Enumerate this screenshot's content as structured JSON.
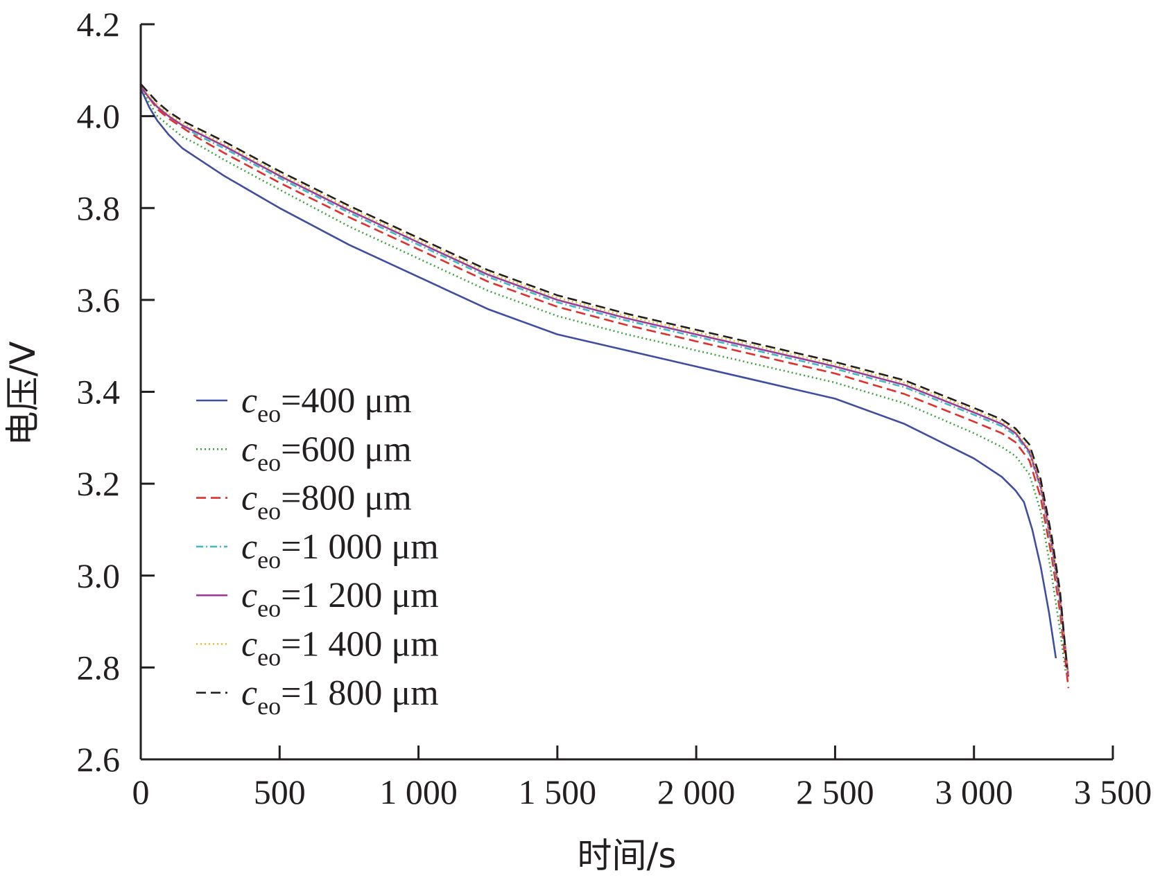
{
  "chart_data": {
    "type": "line",
    "xlabel": "时间/s",
    "ylabel": "电压/V",
    "xlim": [
      0,
      3500
    ],
    "ylim": [
      2.6,
      4.2
    ],
    "x_ticks": [
      {
        "value": 0,
        "label": "0"
      },
      {
        "value": 500,
        "label": "500"
      },
      {
        "value": 1000,
        "label": "1 000"
      },
      {
        "value": 1500,
        "label": "1 500"
      },
      {
        "value": 2000,
        "label": "2 000"
      },
      {
        "value": 2500,
        "label": "2 500"
      },
      {
        "value": 3000,
        "label": "3 000"
      },
      {
        "value": 3500,
        "label": "3 500"
      }
    ],
    "y_ticks": [
      {
        "value": 2.6,
        "label": "2.6"
      },
      {
        "value": 2.8,
        "label": "2.8"
      },
      {
        "value": 3.0,
        "label": "3.0"
      },
      {
        "value": 3.2,
        "label": "3.2"
      },
      {
        "value": 3.4,
        "label": "3.4"
      },
      {
        "value": 3.6,
        "label": "3.6"
      },
      {
        "value": 3.8,
        "label": "3.8"
      },
      {
        "value": 4.0,
        "label": "4.0"
      },
      {
        "value": 4.2,
        "label": "4.2"
      }
    ],
    "grid": false,
    "legend_position": "left-bottom",
    "series": [
      {
        "legend_symbol": "c",
        "legend_subscript": "eo",
        "legend_value": "=400 μm",
        "color": "#3f4ea0",
        "dash": "",
        "points": [
          [
            0,
            4.06
          ],
          [
            30,
            4.02
          ],
          [
            60,
            3.99
          ],
          [
            100,
            3.96
          ],
          [
            150,
            3.93
          ],
          [
            200,
            3.91
          ],
          [
            300,
            3.87
          ],
          [
            500,
            3.8
          ],
          [
            750,
            3.72
          ],
          [
            1000,
            3.65
          ],
          [
            1250,
            3.58
          ],
          [
            1500,
            3.525
          ],
          [
            1750,
            3.49
          ],
          [
            2000,
            3.455
          ],
          [
            2250,
            3.42
          ],
          [
            2500,
            3.385
          ],
          [
            2750,
            3.33
          ],
          [
            3000,
            3.255
          ],
          [
            3100,
            3.215
          ],
          [
            3150,
            3.185
          ],
          [
            3180,
            3.16
          ],
          [
            3210,
            3.1
          ],
          [
            3240,
            3.02
          ],
          [
            3270,
            2.92
          ],
          [
            3295,
            2.82
          ]
        ]
      },
      {
        "legend_symbol": "c",
        "legend_subscript": "eo",
        "legend_value": "=600 μm",
        "color": "#3aa53a",
        "dash": "2 4",
        "points": [
          [
            0,
            4.065
          ],
          [
            30,
            4.03
          ],
          [
            60,
            4.0
          ],
          [
            100,
            3.98
          ],
          [
            150,
            3.955
          ],
          [
            200,
            3.94
          ],
          [
            300,
            3.905
          ],
          [
            500,
            3.84
          ],
          [
            750,
            3.76
          ],
          [
            1000,
            3.69
          ],
          [
            1250,
            3.62
          ],
          [
            1500,
            3.565
          ],
          [
            1750,
            3.525
          ],
          [
            2000,
            3.49
          ],
          [
            2250,
            3.455
          ],
          [
            2500,
            3.42
          ],
          [
            2750,
            3.375
          ],
          [
            3000,
            3.31
          ],
          [
            3100,
            3.28
          ],
          [
            3150,
            3.26
          ],
          [
            3200,
            3.22
          ],
          [
            3240,
            3.14
          ],
          [
            3280,
            3.0
          ],
          [
            3310,
            2.88
          ],
          [
            3330,
            2.79
          ]
        ]
      },
      {
        "legend_symbol": "c",
        "legend_subscript": "eo",
        "legend_value": "=800 μm",
        "color": "#e0302a",
        "dash": "14 7",
        "points": [
          [
            0,
            4.065
          ],
          [
            30,
            4.04
          ],
          [
            60,
            4.015
          ],
          [
            100,
            3.995
          ],
          [
            150,
            3.975
          ],
          [
            200,
            3.955
          ],
          [
            300,
            3.92
          ],
          [
            500,
            3.855
          ],
          [
            750,
            3.78
          ],
          [
            1000,
            3.71
          ],
          [
            1250,
            3.64
          ],
          [
            1500,
            3.585
          ],
          [
            1750,
            3.545
          ],
          [
            2000,
            3.51
          ],
          [
            2250,
            3.475
          ],
          [
            2500,
            3.44
          ],
          [
            2750,
            3.395
          ],
          [
            3000,
            3.335
          ],
          [
            3100,
            3.31
          ],
          [
            3150,
            3.29
          ],
          [
            3200,
            3.25
          ],
          [
            3240,
            3.17
          ],
          [
            3280,
            3.04
          ],
          [
            3310,
            2.92
          ],
          [
            3340,
            2.755
          ]
        ]
      },
      {
        "legend_symbol": "c",
        "legend_subscript": "eo",
        "legend_value": "=1 000 μm",
        "color": "#45b8c6",
        "dash": "10 4 2 4",
        "points": [
          [
            0,
            4.065
          ],
          [
            30,
            4.04
          ],
          [
            60,
            4.02
          ],
          [
            100,
            4.0
          ],
          [
            150,
            3.98
          ],
          [
            200,
            3.96
          ],
          [
            300,
            3.93
          ],
          [
            500,
            3.865
          ],
          [
            750,
            3.79
          ],
          [
            1000,
            3.72
          ],
          [
            1250,
            3.65
          ],
          [
            1500,
            3.595
          ],
          [
            1750,
            3.555
          ],
          [
            2000,
            3.52
          ],
          [
            2250,
            3.485
          ],
          [
            2500,
            3.45
          ],
          [
            2750,
            3.41
          ],
          [
            3000,
            3.35
          ],
          [
            3100,
            3.325
          ],
          [
            3150,
            3.305
          ],
          [
            3200,
            3.265
          ],
          [
            3240,
            3.19
          ],
          [
            3280,
            3.06
          ],
          [
            3310,
            2.94
          ],
          [
            3340,
            2.78
          ]
        ]
      },
      {
        "legend_symbol": "c",
        "legend_subscript": "eo",
        "legend_value": "=1 200 μm",
        "color": "#9c3b96",
        "dash": "",
        "points": [
          [
            0,
            4.065
          ],
          [
            30,
            4.04
          ],
          [
            60,
            4.02
          ],
          [
            100,
            4.0
          ],
          [
            150,
            3.98
          ],
          [
            200,
            3.965
          ],
          [
            300,
            3.935
          ],
          [
            500,
            3.87
          ],
          [
            750,
            3.795
          ],
          [
            1000,
            3.725
          ],
          [
            1250,
            3.655
          ],
          [
            1500,
            3.6
          ],
          [
            1750,
            3.56
          ],
          [
            2000,
            3.525
          ],
          [
            2250,
            3.49
          ],
          [
            2500,
            3.455
          ],
          [
            2750,
            3.415
          ],
          [
            3000,
            3.355
          ],
          [
            3100,
            3.33
          ],
          [
            3150,
            3.31
          ],
          [
            3200,
            3.27
          ],
          [
            3240,
            3.195
          ],
          [
            3280,
            3.07
          ],
          [
            3310,
            2.95
          ],
          [
            3340,
            2.78
          ]
        ]
      },
      {
        "legend_symbol": "c",
        "legend_subscript": "eo",
        "legend_value": "=1 400 μm",
        "color": "#f1b620",
        "dash": "2 4",
        "points": [
          [
            0,
            4.07
          ],
          [
            30,
            4.045
          ],
          [
            60,
            4.025
          ],
          [
            100,
            4.005
          ],
          [
            150,
            3.985
          ],
          [
            200,
            3.97
          ],
          [
            300,
            3.94
          ],
          [
            500,
            3.875
          ],
          [
            750,
            3.8
          ],
          [
            1000,
            3.73
          ],
          [
            1250,
            3.66
          ],
          [
            1500,
            3.605
          ],
          [
            1750,
            3.565
          ],
          [
            2000,
            3.53
          ],
          [
            2250,
            3.495
          ],
          [
            2500,
            3.46
          ],
          [
            2750,
            3.42
          ],
          [
            3000,
            3.36
          ],
          [
            3100,
            3.335
          ],
          [
            3150,
            3.315
          ],
          [
            3200,
            3.275
          ],
          [
            3240,
            3.2
          ],
          [
            3280,
            3.075
          ],
          [
            3310,
            2.955
          ],
          [
            3340,
            2.785
          ]
        ]
      },
      {
        "legend_symbol": "c",
        "legend_subscript": "eo",
        "legend_value": "=1 800 μm",
        "color": "#231f20",
        "dash": "14 7",
        "points": [
          [
            0,
            4.07
          ],
          [
            30,
            4.05
          ],
          [
            60,
            4.03
          ],
          [
            100,
            4.01
          ],
          [
            150,
            3.99
          ],
          [
            200,
            3.975
          ],
          [
            300,
            3.945
          ],
          [
            500,
            3.88
          ],
          [
            750,
            3.805
          ],
          [
            1000,
            3.735
          ],
          [
            1250,
            3.665
          ],
          [
            1500,
            3.61
          ],
          [
            1750,
            3.57
          ],
          [
            2000,
            3.535
          ],
          [
            2250,
            3.5
          ],
          [
            2500,
            3.465
          ],
          [
            2750,
            3.425
          ],
          [
            3000,
            3.365
          ],
          [
            3100,
            3.34
          ],
          [
            3150,
            3.32
          ],
          [
            3200,
            3.285
          ],
          [
            3240,
            3.21
          ],
          [
            3280,
            3.085
          ],
          [
            3310,
            2.965
          ],
          [
            3335,
            2.8
          ]
        ]
      }
    ]
  }
}
